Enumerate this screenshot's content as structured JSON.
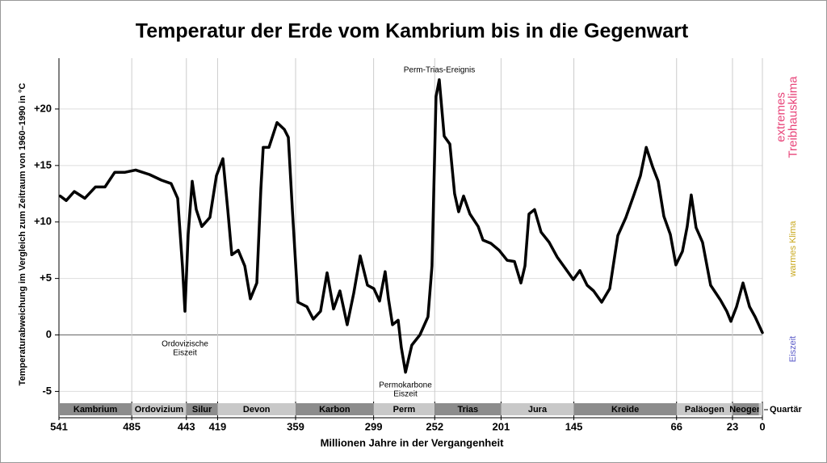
{
  "chart_data": {
    "type": "line",
    "title": "Temperatur der Erde vom Kambrium bis in die Gegenwart",
    "x_label": "Millionen Jahre in der Vergangenheit",
    "y_label": "Temperaturabweichung im Vergleich zum Zeitraum von 1960–1990 in °C",
    "xlim": [
      541,
      0
    ],
    "ylim": [
      -5.9,
      24.5
    ],
    "xticks": [
      541,
      485,
      443,
      419,
      359,
      299,
      252,
      201,
      145,
      66,
      23,
      0
    ],
    "yticks": [
      {
        "value": -5,
        "label": "-5"
      },
      0,
      {
        "value": 5,
        "label": "+5"
      },
      {
        "value": 10,
        "label": "+10"
      },
      {
        "value": 15,
        "label": "+15"
      },
      {
        "value": 20,
        "label": "+20"
      }
    ],
    "grid": true,
    "series": [
      {
        "color": "#000000",
        "x": [
          540,
          535.4,
          529.2,
          521.1,
          513,
          505.6,
          498.1,
          490.1,
          482,
          471.4,
          462.1,
          454.7,
          449.7,
          446,
          444.1,
          441.6,
          438.5,
          435.4,
          431.1,
          424.9,
          419.9,
          414.9,
          411.2,
          408.1,
          403.1,
          398.1,
          393.8,
          388.8,
          385.7,
          383.9,
          379.5,
          373.3,
          367.7,
          364.6,
          361.5,
          357.2,
          350.3,
          345.4,
          339.8,
          334.8,
          329.8,
          324.9,
          319.3,
          314.3,
          309.3,
          303.7,
          298.8,
          294.4,
          290.1,
          287.6,
          284.5,
          280.1,
          277.7,
          274.5,
          269.6,
          263.4,
          257.2,
          254.1,
          251,
          248.5,
          244.7,
          240.4,
          236.7,
          233.6,
          229.8,
          224.9,
          218.6,
          214.9,
          208.7,
          202.5,
          196.3,
          190.7,
          185.7,
          182.6,
          179.5,
          175.2,
          170.2,
          164,
          157.8,
          151.6,
          145.4,
          140.4,
          134.8,
          129.8,
          123.6,
          117.4,
          111.2,
          105,
          98.8,
          93.8,
          89.3,
          84.5,
          80.1,
          75.8,
          70.8,
          66.5,
          61.5,
          57.8,
          54.7,
          51,
          46,
          39.8,
          32.3,
          27.4,
          24.2,
          19.9,
          14.9,
          9.9,
          5.6,
          0
        ],
        "values": [
          12.3,
          11.9,
          12.7,
          12.1,
          13.1,
          13.1,
          14.4,
          14.4,
          14.6,
          14.2,
          13.7,
          13.4,
          12.1,
          6.1,
          2.1,
          8.9,
          13.6,
          11.1,
          9.6,
          10.4,
          14.1,
          15.6,
          11.1,
          7.1,
          7.5,
          6.1,
          3.2,
          4.6,
          12.9,
          16.6,
          16.6,
          18.8,
          18.2,
          17.5,
          11.1,
          2.9,
          2.5,
          1.4,
          2.1,
          5.5,
          2.3,
          3.9,
          0.9,
          3.7,
          7.0,
          4.4,
          4.1,
          3.0,
          5.6,
          3.2,
          0.9,
          1.3,
          -1.1,
          -3.3,
          -0.9,
          0,
          1.6,
          6.1,
          21.1,
          22.6,
          17.6,
          16.9,
          12.5,
          10.9,
          12.3,
          10.7,
          9.6,
          8.4,
          8.1,
          7.5,
          6.6,
          6.5,
          4.6,
          6.1,
          10.7,
          11.1,
          9.1,
          8.2,
          6.9,
          5.9,
          4.9,
          5.7,
          4.4,
          3.9,
          2.9,
          4.1,
          8.8,
          10.4,
          12.4,
          14.1,
          16.6,
          14.9,
          13.6,
          10.5,
          8.9,
          6.2,
          7.4,
          9.6,
          12.4,
          9.5,
          8.2,
          4.4,
          3.1,
          2.1,
          1.2,
          2.5,
          4.6,
          2.5,
          1.6,
          0.2
        ]
      }
    ],
    "annotations": [
      {
        "lines": [
          "Perm-Trias-Ereignis"
        ]
      },
      {
        "lines": [
          "Ordovizische",
          "Eiszeit"
        ]
      },
      {
        "lines": [
          "Permokarbone",
          "Eiszeit"
        ]
      }
    ],
    "periods": [
      {
        "name": "Kambrium",
        "start": 541,
        "end": 485
      },
      {
        "name": "Ordovizium",
        "start": 485,
        "end": 443
      },
      {
        "name": "Silur",
        "start": 443,
        "end": 419
      },
      {
        "name": "Devon",
        "start": 419,
        "end": 359
      },
      {
        "name": "Karbon",
        "start": 359,
        "end": 299
      },
      {
        "name": "Perm",
        "start": 299,
        "end": 252
      },
      {
        "name": "Trias",
        "start": 252,
        "end": 201
      },
      {
        "name": "Jura",
        "start": 201,
        "end": 145
      },
      {
        "name": "Kreide",
        "start": 145,
        "end": 66
      },
      {
        "name": "Paläogen",
        "start": 66,
        "end": 23
      },
      {
        "name": "Neogen",
        "start": 23,
        "end": 2.6
      },
      {
        "name": "Quartär",
        "start": 2.6,
        "end": 0
      }
    ],
    "period_colors": [
      "#8c8c8c",
      "#c8c8c8"
    ],
    "climate_labels": [
      {
        "lines": [
          "extremes",
          "Treibhausklima"
        ],
        "color": "#e8457a"
      },
      {
        "lines": [
          "warmes Klima"
        ],
        "color": "#c9a81e"
      },
      {
        "lines": [
          "Eiszeit"
        ],
        "color": "#5a5ac8"
      }
    ]
  }
}
